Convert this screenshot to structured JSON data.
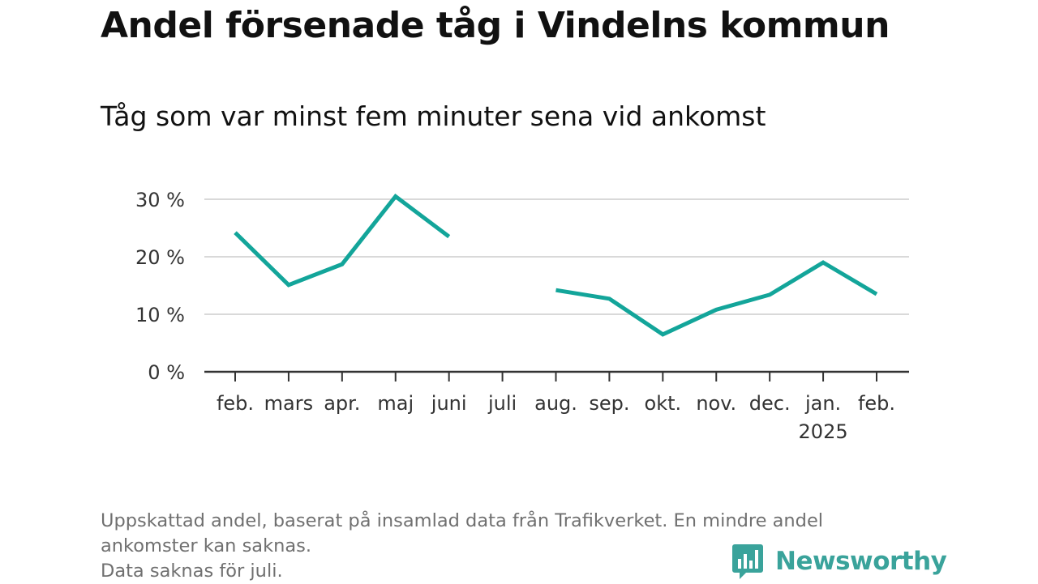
{
  "title": "Andel försenade tåg i Vindelns kommun",
  "subtitle": "Tåg som var minst fem minuter sena vid ankomst",
  "footer": {
    "line1": "Uppskattad andel, baserat på insamlad data från Trafikverket. En mindre andel",
    "line2": "ankomster kan saknas.",
    "line3": "Data saknas för juli."
  },
  "logo": {
    "text": "Newsworthy",
    "icon": "bar-chart-speech-bubble-icon",
    "color": "#3aa39b"
  },
  "chart_data": {
    "type": "line",
    "categories": [
      "feb.",
      "mars",
      "apr.",
      "maj",
      "juni",
      "juli",
      "aug.",
      "sep.",
      "okt.",
      "nov.",
      "dec.",
      "jan.",
      "feb."
    ],
    "category_sublabels": [
      "",
      "",
      "",
      "",
      "",
      "",
      "",
      "",
      "",
      "",
      "",
      "2025",
      ""
    ],
    "series": [
      {
        "values": [
          24.2,
          15.1,
          18.7,
          30.5,
          23.5,
          null,
          14.2,
          12.7,
          6.5,
          10.8,
          13.4,
          19.0,
          13.5
        ],
        "color": "#13a59a"
      }
    ],
    "yticks": [
      0,
      10,
      20,
      30
    ],
    "ytick_labels": [
      "0 %",
      "10 %",
      "20 %",
      "30 %"
    ],
    "ylim": [
      0,
      30
    ],
    "grid": true,
    "xlabel": "",
    "ylabel": ""
  }
}
